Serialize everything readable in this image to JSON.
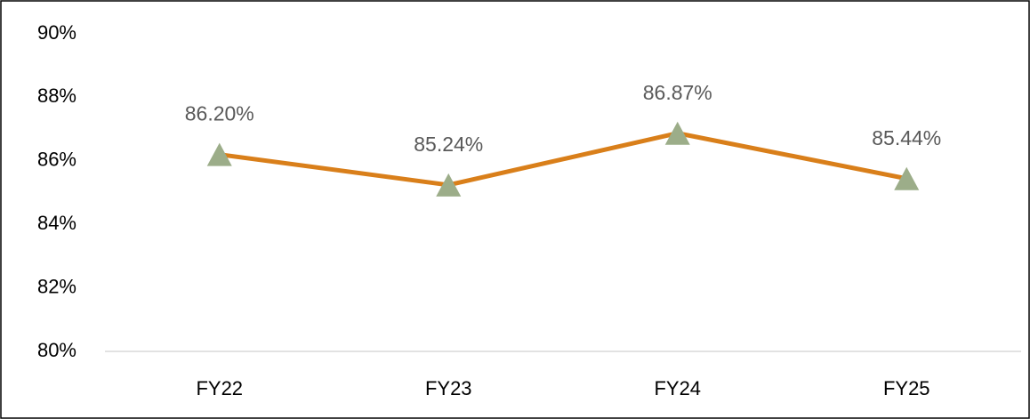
{
  "chart_data": {
    "type": "line",
    "categories": [
      "FY22",
      "FY23",
      "FY24",
      "FY25"
    ],
    "series": [
      {
        "color": "#d97f1a",
        "marker_color": "#9cad89",
        "values": [
          86.2,
          85.24,
          86.87,
          85.44
        ],
        "value_labels": [
          "86.20%",
          "85.24%",
          "86.87%",
          "85.44%"
        ]
      }
    ],
    "ylim": [
      80,
      90
    ],
    "yticks": [
      {
        "value": 80,
        "label": "80%"
      },
      {
        "value": 82,
        "label": "82%"
      },
      {
        "value": 84,
        "label": "84%"
      },
      {
        "value": 86,
        "label": "86%"
      },
      {
        "value": 88,
        "label": "88%"
      },
      {
        "value": 90,
        "label": "90%"
      }
    ],
    "grid": false
  }
}
